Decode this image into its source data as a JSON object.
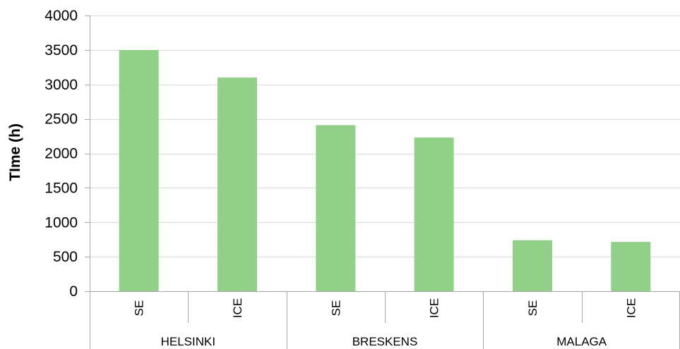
{
  "chart_data": {
    "type": "bar",
    "ylabel": "TIme (h)",
    "xlabel": "",
    "title": "",
    "ylim": [
      0,
      4000
    ],
    "ytick_step": 500,
    "yticks": [
      "0",
      "500",
      "1000",
      "1500",
      "2000",
      "2500",
      "3000",
      "3500",
      "4000"
    ],
    "grid": true,
    "legend": "none",
    "bar_color": "#92d08a",
    "groups": [
      "HELSINKI",
      "BRESKENS",
      "MALAGA"
    ],
    "subcategories": [
      "SE",
      "ICE"
    ],
    "categories": [
      "SE",
      "ICE",
      "SE",
      "ICE",
      "SE",
      "ICE"
    ],
    "category_groups": [
      "HELSINKI",
      "HELSINKI",
      "BRESKENS",
      "BRESKENS",
      "MALAGA",
      "MALAGA"
    ],
    "values": [
      3500,
      3100,
      2410,
      2230,
      740,
      715
    ]
  }
}
